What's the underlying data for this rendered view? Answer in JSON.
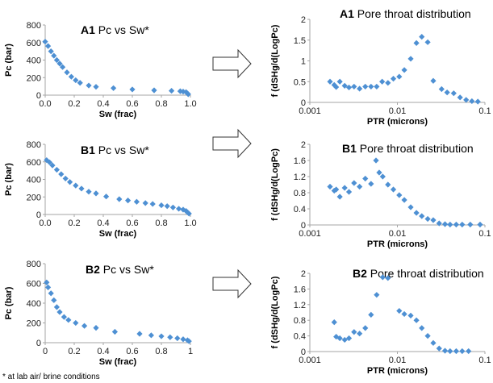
{
  "colors": {
    "marker": "#4e90d3",
    "axis": "#a6a6a6",
    "arrow_stroke": "#333333"
  },
  "footnote": "* at lab air/ brine conditions",
  "chart_data": [
    {
      "id": "A1-pc",
      "type": "scatter",
      "scale": "linear",
      "title_id": "A1",
      "title_text": "Pc vs Sw*",
      "xlabel": "Sw (frac)",
      "ylabel": "Pc (bar)",
      "xlim": [
        0,
        1
      ],
      "ylim": [
        0,
        800
      ],
      "xticks": [
        "0.0",
        "0.2",
        "0.4",
        "0.6",
        "0.8",
        "1.0"
      ],
      "xtick_values": [
        0,
        0.2,
        0.4,
        0.6,
        0.8,
        1.0
      ],
      "yticks": [
        "0",
        "200",
        "400",
        "600",
        "800"
      ],
      "ytick_values": [
        0,
        200,
        400,
        600,
        800
      ],
      "x": [
        0.0,
        0.02,
        0.04,
        0.06,
        0.08,
        0.1,
        0.12,
        0.15,
        0.18,
        0.21,
        0.24,
        0.3,
        0.35,
        0.47,
        0.6,
        0.75,
        0.87,
        0.93,
        0.95,
        0.97,
        0.98,
        0.985
      ],
      "y": [
        610,
        560,
        500,
        450,
        400,
        360,
        320,
        260,
        210,
        170,
        140,
        110,
        95,
        80,
        65,
        55,
        50,
        45,
        40,
        35,
        20,
        10
      ]
    },
    {
      "id": "A1-ptd",
      "type": "scatter",
      "scale": "log",
      "title_id": "A1",
      "title_text": "Pore throat distribution",
      "xlabel": "PTR (microns)",
      "ylabel": "f (dSHg/d(LogPc)",
      "xlim": [
        0.001,
        0.1
      ],
      "ylim": [
        0,
        2
      ],
      "xticks": [
        "0.001",
        "0.01",
        "0.1"
      ],
      "xtick_values": [
        0.001,
        0.01,
        0.1
      ],
      "yticks": [
        "0",
        "0.5",
        "1",
        "1.5",
        "2"
      ],
      "ytick_values": [
        0,
        0.5,
        1,
        1.5,
        2
      ],
      "x": [
        0.0017,
        0.0019,
        0.002,
        0.0022,
        0.0025,
        0.0028,
        0.0032,
        0.0037,
        0.0043,
        0.005,
        0.0058,
        0.0067,
        0.0078,
        0.009,
        0.0105,
        0.012,
        0.0142,
        0.0165,
        0.019,
        0.0222,
        0.0257,
        0.032,
        0.037,
        0.044,
        0.052,
        0.061,
        0.071,
        0.083
      ],
      "y": [
        0.5,
        0.42,
        0.37,
        0.5,
        0.4,
        0.36,
        0.38,
        0.33,
        0.38,
        0.38,
        0.38,
        0.5,
        0.47,
        0.57,
        0.62,
        0.78,
        1.05,
        1.43,
        1.58,
        1.45,
        0.52,
        0.32,
        0.24,
        0.22,
        0.12,
        0.06,
        0.03,
        0.02
      ]
    },
    {
      "id": "B1-pc",
      "type": "scatter",
      "scale": "linear",
      "title_id": "B1",
      "title_text": "Pc vs Sw*",
      "xlabel": "Sw (frac)",
      "ylabel": "Pc (bar)",
      "xlim": [
        0,
        1
      ],
      "ylim": [
        0,
        800
      ],
      "xticks": [
        "0.0",
        "0.2",
        "0.4",
        "0.6",
        "0.8",
        "1.0"
      ],
      "xtick_values": [
        0,
        0.2,
        0.4,
        0.6,
        0.8,
        1.0
      ],
      "yticks": [
        "0",
        "200",
        "400",
        "600",
        "800"
      ],
      "ytick_values": [
        0,
        200,
        400,
        600,
        800
      ],
      "x": [
        0.01,
        0.03,
        0.05,
        0.08,
        0.11,
        0.14,
        0.17,
        0.21,
        0.25,
        0.3,
        0.35,
        0.42,
        0.51,
        0.57,
        0.63,
        0.69,
        0.74,
        0.8,
        0.84,
        0.88,
        0.92,
        0.95,
        0.97,
        0.98,
        0.99
      ],
      "y": [
        620,
        595,
        560,
        510,
        460,
        410,
        370,
        330,
        295,
        260,
        240,
        205,
        175,
        160,
        145,
        130,
        120,
        105,
        95,
        80,
        65,
        55,
        40,
        25,
        10
      ]
    },
    {
      "id": "B1-ptd",
      "type": "scatter",
      "scale": "log",
      "title_id": "B1",
      "title_text": "Pore throat distribution",
      "xlabel": "PTR (microns)",
      "ylabel": "f (dSHg/d(LogPc)",
      "xlim": [
        0.001,
        0.1
      ],
      "ylim": [
        0,
        2
      ],
      "xticks": [
        "0.001",
        "0.01",
        "0.1"
      ],
      "xtick_values": [
        0.001,
        0.01,
        0.1
      ],
      "yticks": [
        "0",
        "0.4",
        "0.8",
        "1.2",
        "1.6",
        "2"
      ],
      "ytick_values": [
        0,
        0.4,
        0.8,
        1.2,
        1.6,
        2
      ],
      "x": [
        0.0017,
        0.0019,
        0.002,
        0.0022,
        0.0025,
        0.0028,
        0.0032,
        0.0037,
        0.0043,
        0.005,
        0.0057,
        0.0062,
        0.0068,
        0.0078,
        0.009,
        0.0105,
        0.012,
        0.0142,
        0.0165,
        0.019,
        0.0222,
        0.0257,
        0.03,
        0.035,
        0.04,
        0.047,
        0.055,
        0.068,
        0.088
      ],
      "y": [
        0.95,
        0.85,
        0.88,
        0.7,
        0.92,
        0.82,
        1.04,
        0.95,
        1.15,
        1.02,
        1.6,
        1.3,
        1.2,
        1.0,
        0.88,
        0.74,
        0.62,
        0.44,
        0.3,
        0.22,
        0.15,
        0.12,
        0.04,
        0.02,
        0.01,
        0.01,
        0.01,
        0.01,
        0.01
      ]
    },
    {
      "id": "B2-pc",
      "type": "scatter",
      "scale": "linear",
      "title_id": "B2",
      "title_text": "Pc vs Sw*",
      "xlabel": "Sw (frac)",
      "ylabel": "Pc (bar)",
      "xlim": [
        0,
        1
      ],
      "ylim": [
        0,
        800
      ],
      "xticks": [
        "0",
        "0.2",
        "0.4",
        "0.6",
        "0.8",
        "1"
      ],
      "xtick_values": [
        0,
        0.2,
        0.4,
        0.6,
        0.8,
        1.0
      ],
      "yticks": [
        "0",
        "200",
        "400",
        "600",
        "800"
      ],
      "ytick_values": [
        0,
        200,
        400,
        600,
        800
      ],
      "x": [
        0.01,
        0.02,
        0.04,
        0.06,
        0.08,
        0.1,
        0.13,
        0.16,
        0.21,
        0.27,
        0.35,
        0.48,
        0.65,
        0.73,
        0.8,
        0.86,
        0.91,
        0.95,
        0.98,
        0.99
      ],
      "y": [
        610,
        560,
        500,
        430,
        360,
        310,
        260,
        230,
        200,
        170,
        150,
        110,
        90,
        75,
        65,
        55,
        45,
        35,
        25,
        15
      ]
    },
    {
      "id": "B2-ptd",
      "type": "scatter",
      "scale": "log",
      "title_id": "B2",
      "title_text": "Pore throat distribution",
      "xlabel": "PTR (microns)",
      "ylabel": "f (dSHg/d(LogPc)",
      "xlim": [
        0.001,
        0.1
      ],
      "ylim": [
        0,
        2
      ],
      "xticks": [
        "0.001",
        "0.01",
        "0.1"
      ],
      "xtick_values": [
        0.001,
        0.01,
        0.1
      ],
      "yticks": [
        "0",
        "0.4",
        "0.8",
        "1.2",
        "1.6",
        "2"
      ],
      "ytick_values": [
        0,
        0.4,
        0.8,
        1.2,
        1.6,
        2
      ],
      "x": [
        0.0019,
        0.002,
        0.0022,
        0.0025,
        0.0028,
        0.0032,
        0.0037,
        0.0043,
        0.005,
        0.0058,
        0.0068,
        0.0078,
        0.0105,
        0.012,
        0.0142,
        0.0165,
        0.019,
        0.0222,
        0.0257,
        0.03,
        0.035,
        0.04,
        0.047,
        0.055,
        0.065
      ],
      "y": [
        0.75,
        0.38,
        0.34,
        0.3,
        0.34,
        0.5,
        0.46,
        0.6,
        0.94,
        1.45,
        1.9,
        1.88,
        1.04,
        0.96,
        0.92,
        0.8,
        0.6,
        0.4,
        0.22,
        0.08,
        0.02,
        0.01,
        0.01,
        0.01,
        0.01
      ]
    }
  ]
}
